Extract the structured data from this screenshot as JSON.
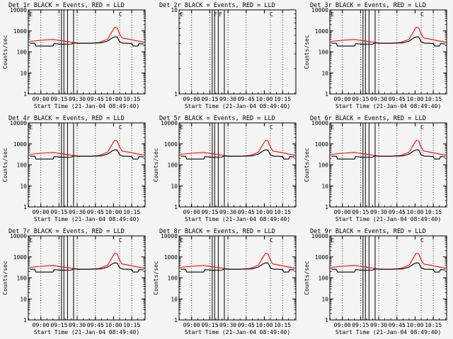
{
  "figure": {
    "start_time_label": "Start Time (21-Jan-04 08:49:40)",
    "x_tick_labels": [
      "09:00",
      "09:15",
      "09:30",
      "09:45",
      "10:00",
      "10:15"
    ],
    "y_tick_labels": [
      "1",
      "10",
      "100",
      "1000",
      "10000"
    ],
    "ylabel": "Counts/sec",
    "line_colors": {
      "events": "#000000",
      "lld": "#ff0000"
    }
  },
  "chart_data": [
    {
      "type": "line",
      "title": "Det 1r BLACK = Events, RED = LLD",
      "has_data": true,
      "xlabel": "Start Time (21-Jan-04 08:49:40)",
      "ylabel": "Counts/sec",
      "ylim": [
        1,
        10000
      ],
      "yscale": "log",
      "flags": [
        {
          "label": "E",
          "t": "08:51"
        },
        {
          "label": "C",
          "t": "10:05"
        }
      ]
    },
    {
      "type": "line",
      "title": "Det 2r BLACK = Events, RED = LLD",
      "has_data": false,
      "xlabel": "Start Time (21-Jan-04 08:49:40)",
      "ylabel": "",
      "ylim": [
        1,
        10
      ],
      "yscale": "log",
      "flags": [
        {
          "label": "E",
          "t": "08:51"
        },
        {
          "label": "F",
          "t": "09:19"
        },
        {
          "label": "F",
          "t": "09:23"
        },
        {
          "label": "C",
          "t": "10:05"
        }
      ]
    },
    {
      "type": "line",
      "title": "Det 3r BLACK = Events, RED = LLD",
      "has_data": true,
      "xlabel": "Start Time (21-Jan-04 08:49:40)",
      "ylabel": "Counts/sec",
      "ylim": [
        1,
        10000
      ],
      "yscale": "log",
      "flags": [
        {
          "label": "E",
          "t": "08:51"
        },
        {
          "label": "C",
          "t": "10:05"
        }
      ]
    },
    {
      "type": "line",
      "title": "Det 4r BLACK = Events, RED = LLD",
      "has_data": true,
      "xlabel": "Start Time (21-Jan-04 08:49:40)",
      "ylabel": "Counts/sec",
      "ylim": [
        1,
        10000
      ],
      "yscale": "log",
      "flags": [
        {
          "label": "E",
          "t": "08:51"
        },
        {
          "label": "C",
          "t": "10:05"
        }
      ]
    },
    {
      "type": "line",
      "title": "Det 5r BLACK = Events, RED = LLD",
      "has_data": true,
      "xlabel": "Start Time (21-Jan-04 08:49:40)",
      "ylabel": "Counts/sec",
      "ylim": [
        1,
        10000
      ],
      "yscale": "log",
      "flags": [
        {
          "label": "E",
          "t": "08:51"
        },
        {
          "label": "C",
          "t": "10:05"
        }
      ]
    },
    {
      "type": "line",
      "title": "Det 6r BLACK = Events, RED = LLD",
      "has_data": true,
      "xlabel": "Start Time (21-Jan-04 08:49:40)",
      "ylabel": "Counts/sec",
      "ylim": [
        1,
        10000
      ],
      "yscale": "log",
      "flags": [
        {
          "label": "E",
          "t": "08:51"
        },
        {
          "label": "C",
          "t": "10:05"
        }
      ]
    },
    {
      "type": "line",
      "title": "Det 7r BLACK = Events, RED = LLD",
      "has_data": true,
      "xlabel": "Start Time (21-Jan-04 08:49:40)",
      "ylabel": "Counts/sec",
      "ylim": [
        1,
        10000
      ],
      "yscale": "log",
      "flags": [
        {
          "label": "E",
          "t": "08:51"
        },
        {
          "label": "C",
          "t": "10:05"
        }
      ]
    },
    {
      "type": "line",
      "title": "Det 8r BLACK = Events, RED = LLD",
      "has_data": true,
      "xlabel": "Start Time (21-Jan-04 08:49:40)",
      "ylabel": "Counts/sec",
      "ylim": [
        1,
        10000
      ],
      "yscale": "log",
      "flags": [
        {
          "label": "E",
          "t": "08:51"
        },
        {
          "label": "C",
          "t": "10:05"
        }
      ]
    },
    {
      "type": "line",
      "title": "Det 9r BLACK = Events, RED = LLD",
      "has_data": true,
      "xlabel": "Start Time (21-Jan-04 08:49:40)",
      "ylabel": "Counts/sec",
      "ylim": [
        1,
        10000
      ],
      "yscale": "log",
      "flags": [
        {
          "label": "E",
          "t": "08:51"
        },
        {
          "label": "C",
          "t": "10:05"
        }
      ]
    }
  ],
  "time_axis": {
    "start": "08:49:40",
    "end": "10:26",
    "ticks": [
      "09:00",
      "09:15",
      "09:30",
      "09:45",
      "10:00",
      "10:15"
    ]
  },
  "markers": {
    "dotted_lines_at": [
      "09:00",
      "09:15",
      "09:30",
      "09:45",
      "10:05",
      "10:15"
    ],
    "solid_lines_at": [
      "09:17",
      "09:19",
      "09:22",
      "09:27"
    ]
  },
  "series_events": {
    "name": "Events",
    "t": [
      "08:51",
      "08:55",
      "08:56",
      "09:05",
      "09:10",
      "09:11",
      "09:18",
      "09:25",
      "09:27",
      "09:31",
      "09:40",
      "09:50",
      "09:55",
      "09:59",
      "10:01",
      "10:03",
      "10:05",
      "10:07",
      "10:08",
      "10:11",
      "10:15",
      "10:16",
      "10:20",
      "10:21",
      "10:25"
    ],
    "counts": [
      260,
      260,
      190,
      190,
      190,
      250,
      230,
      235,
      270,
      260,
      260,
      270,
      330,
      470,
      520,
      510,
      300,
      270,
      260,
      260,
      250,
      190,
      190,
      250,
      240
    ]
  },
  "series_lld": {
    "name": "LLD",
    "t": [
      "08:51",
      "09:00",
      "09:10",
      "09:17",
      "09:25",
      "09:30",
      "09:40",
      "09:48",
      "09:55",
      "09:59",
      "10:01",
      "10:03",
      "10:05",
      "10:07",
      "10:10",
      "10:15",
      "10:20",
      "10:25"
    ],
    "counts": [
      320,
      360,
      390,
      340,
      290,
      260,
      260,
      280,
      400,
      1000,
      1500,
      1400,
      700,
      460,
      430,
      380,
      330,
      290
    ]
  }
}
